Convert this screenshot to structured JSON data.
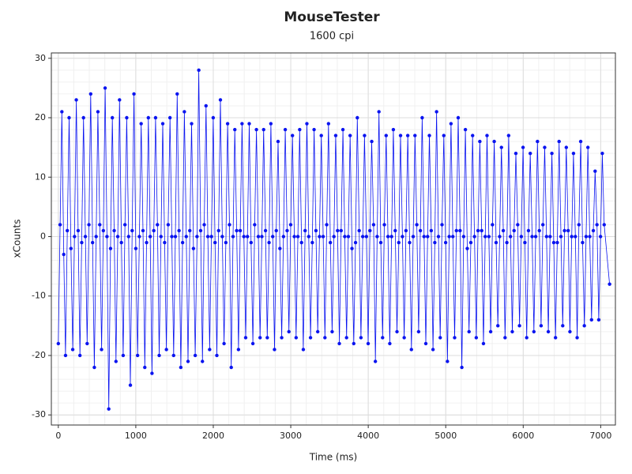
{
  "chart_data": {
    "type": "line",
    "title": "MouseTester",
    "subtitle": "1600 cpi",
    "xlabel": "Time (ms)",
    "ylabel": "xCounts",
    "x": [
      0,
      23,
      46,
      70,
      93,
      116,
      139,
      163,
      186,
      209,
      232,
      256,
      279,
      302,
      325,
      349,
      372,
      395,
      418,
      442,
      465,
      488,
      511,
      535,
      558,
      581,
      604,
      628,
      651,
      674,
      697,
      721,
      744,
      767,
      790,
      814,
      837,
      860,
      883,
      907,
      930,
      953,
      976,
      1000,
      1023,
      1046,
      1069,
      1093,
      1116,
      1139,
      1162,
      1186,
      1209,
      1232,
      1255,
      1279,
      1302,
      1325,
      1348,
      1372,
      1395,
      1418,
      1441,
      1465,
      1488,
      1511,
      1534,
      1558,
      1581,
      1604,
      1627,
      1651,
      1674,
      1697,
      1720,
      1744,
      1767,
      1790,
      1813,
      1837,
      1860,
      1883,
      1906,
      1930,
      1953,
      1976,
      1999,
      2023,
      2046,
      2069,
      2092,
      2116,
      2139,
      2162,
      2185,
      2209,
      2232,
      2255,
      2278,
      2302,
      2325,
      2348,
      2371,
      2395,
      2418,
      2441,
      2464,
      2488,
      2511,
      2534,
      2557,
      2581,
      2604,
      2627,
      2650,
      2674,
      2697,
      2720,
      2743,
      2767,
      2790,
      2813,
      2836,
      2860,
      2883,
      2906,
      2929,
      2953,
      2976,
      2999,
      3022,
      3046,
      3069,
      3092,
      3115,
      3139,
      3162,
      3185,
      3208,
      3232,
      3255,
      3278,
      3301,
      3325,
      3348,
      3371,
      3394,
      3418,
      3441,
      3464,
      3487,
      3511,
      3534,
      3557,
      3580,
      3604,
      3627,
      3650,
      3673,
      3697,
      3720,
      3743,
      3766,
      3790,
      3813,
      3836,
      3859,
      3883,
      3906,
      3929,
      3952,
      3976,
      3999,
      4022,
      4045,
      4069,
      4092,
      4115,
      4138,
      4162,
      4185,
      4208,
      4231,
      4255,
      4278,
      4301,
      4324,
      4348,
      4371,
      4394,
      4417,
      4441,
      4464,
      4487,
      4510,
      4534,
      4557,
      4580,
      4603,
      4627,
      4650,
      4673,
      4696,
      4720,
      4743,
      4766,
      4789,
      4813,
      4836,
      4859,
      4882,
      4906,
      4929,
      4952,
      4975,
      4999,
      5022,
      5045,
      5068,
      5092,
      5115,
      5138,
      5161,
      5185,
      5208,
      5231,
      5254,
      5278,
      5301,
      5324,
      5347,
      5371,
      5394,
      5417,
      5440,
      5464,
      5487,
      5510,
      5533,
      5557,
      5580,
      5603,
      5626,
      5650,
      5673,
      5696,
      5719,
      5743,
      5766,
      5789,
      5812,
      5836,
      5859,
      5882,
      5905,
      5929,
      5952,
      5975,
      5998,
      6022,
      6045,
      6068,
      6091,
      6115,
      6138,
      6161,
      6184,
      6208,
      6231,
      6254,
      6277,
      6301,
      6324,
      6347,
      6370,
      6394,
      6417,
      6440,
      6463,
      6487,
      6510,
      6533,
      6556,
      6580,
      6603,
      6626,
      6649,
      6673,
      6696,
      6719,
      6742,
      6766,
      6789,
      6812,
      6835,
      6859,
      6882,
      6905,
      6928,
      6952,
      6975,
      6998,
      7021,
      7045,
      7115
    ],
    "values": [
      -18,
      2,
      21,
      -3,
      -20,
      1,
      20,
      -2,
      -19,
      0,
      23,
      1,
      -20,
      -1,
      20,
      0,
      -18,
      2,
      24,
      -1,
      -22,
      0,
      21,
      2,
      -19,
      1,
      25,
      0,
      -29,
      -2,
      20,
      1,
      -21,
      0,
      23,
      -1,
      -20,
      2,
      20,
      0,
      -25,
      1,
      24,
      -2,
      -20,
      0,
      19,
      1,
      -22,
      -1,
      20,
      0,
      -23,
      1,
      20,
      2,
      -20,
      0,
      19,
      -1,
      -19,
      2,
      20,
      0,
      -20,
      0,
      24,
      1,
      -22,
      -1,
      21,
      0,
      -21,
      1,
      19,
      -2,
      -20,
      0,
      28,
      1,
      -21,
      2,
      22,
      0,
      -19,
      0,
      20,
      -1,
      -20,
      1,
      23,
      0,
      -18,
      -1,
      19,
      2,
      -22,
      0,
      18,
      1,
      -19,
      1,
      19,
      0,
      -17,
      0,
      19,
      -1,
      -18,
      2,
      18,
      0,
      -17,
      0,
      18,
      1,
      -17,
      -1,
      19,
      0,
      -19,
      1,
      16,
      -2,
      -17,
      0,
      18,
      1,
      -16,
      2,
      17,
      0,
      -17,
      0,
      18,
      -1,
      -19,
      1,
      19,
      0,
      -17,
      -1,
      18,
      1,
      -16,
      0,
      17,
      0,
      -17,
      2,
      19,
      -1,
      -16,
      0,
      17,
      1,
      -18,
      1,
      18,
      0,
      -17,
      0,
      17,
      -2,
      -18,
      -1,
      20,
      1,
      -17,
      0,
      17,
      0,
      -18,
      1,
      16,
      2,
      -21,
      0,
      21,
      -1,
      -17,
      2,
      17,
      0,
      -18,
      0,
      18,
      1,
      -16,
      -1,
      17,
      0,
      -17,
      1,
      17,
      -1,
      -19,
      0,
      17,
      2,
      -16,
      1,
      20,
      0,
      -18,
      0,
      17,
      1,
      -19,
      -1,
      21,
      0,
      -17,
      2,
      17,
      -1,
      -21,
      0,
      19,
      0,
      -17,
      1,
      20,
      1,
      -22,
      0,
      18,
      -2,
      -16,
      -1,
      17,
      0,
      -17,
      1,
      16,
      1,
      -18,
      0,
      17,
      0,
      -16,
      2,
      16,
      -1,
      -15,
      0,
      15,
      1,
      -17,
      -1,
      17,
      0,
      -16,
      1,
      14,
      2,
      -15,
      0,
      15,
      -1,
      -17,
      1,
      14,
      0,
      -16,
      0,
      16,
      1,
      -15,
      2,
      15,
      0,
      -16,
      0,
      14,
      -1,
      -17,
      -1,
      16,
      0,
      -15,
      1,
      15,
      1,
      -16,
      0,
      14,
      0,
      -17,
      2,
      16,
      -1,
      -15,
      0,
      15,
      0,
      -14,
      1,
      11,
      2,
      -14,
      0,
      14,
      2,
      -8
    ],
    "color": "#0a14f0",
    "markers": true,
    "xlim": [
      -90,
      7190
    ],
    "xticks": [
      0,
      1000,
      2000,
      3000,
      4000,
      5000,
      6000,
      7000
    ],
    "ylim": [
      -31.7,
      30.9
    ],
    "yticks": [
      -30,
      -20,
      -10,
      0,
      10,
      20,
      30
    ],
    "grid": true
  }
}
